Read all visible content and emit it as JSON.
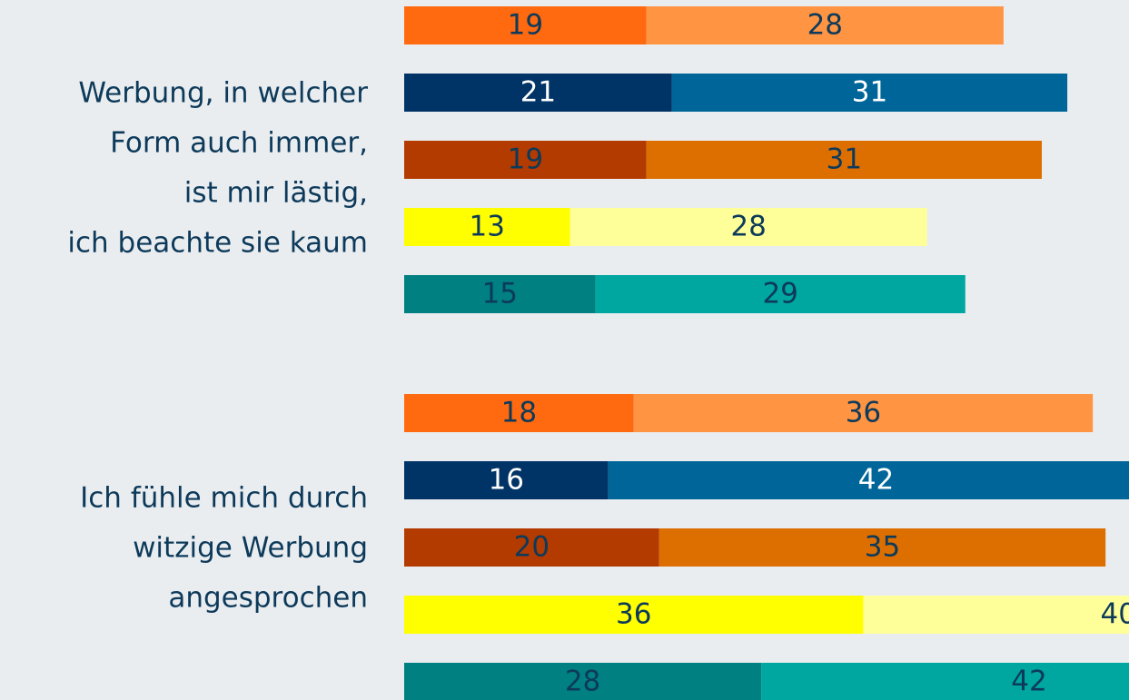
{
  "chart_data": {
    "type": "bar",
    "orientation": "horizontal",
    "stacked": true,
    "categories": [
      [
        "Werbung, in welcher",
        "Form auch immer,",
        "ist mir lästig,",
        "ich beachte sie kaum"
      ],
      [
        "Ich fühle mich durch",
        "witzige Werbung",
        "angesprochen"
      ]
    ],
    "bars": [
      {
        "series": [
          {
            "color": "#ff690f",
            "label_color": "#0d3a5a",
            "values": [
              19,
              18
            ]
          },
          {
            "color": "#ff9442",
            "label_color": "#0d3a5a",
            "values": [
              28,
              36
            ]
          }
        ]
      },
      {
        "series": [
          {
            "color": "#003366",
            "label_color": "#ffffff",
            "values": [
              21,
              16
            ]
          },
          {
            "color": "#006699",
            "label_color": "#ffffff",
            "values": [
              31,
              42
            ]
          }
        ]
      },
      {
        "series": [
          {
            "color": "#b33b00",
            "label_color": "#0d3a5a",
            "values": [
              19,
              20
            ]
          },
          {
            "color": "#dd6f00",
            "label_color": "#0d3a5a",
            "values": [
              31,
              35
            ]
          }
        ]
      },
      {
        "series": [
          {
            "color": "#ffff00",
            "label_color": "#0d3a5a",
            "values": [
              13,
              36
            ]
          },
          {
            "color": "#ffff99",
            "label_color": "#0d3a5a",
            "values": [
              28,
              40
            ]
          }
        ]
      },
      {
        "series": [
          {
            "color": "#008080",
            "label_color": "#0d3a5a",
            "values": [
              15,
              28
            ]
          },
          {
            "color": "#00a6a0",
            "label_color": "#0d3a5a",
            "values": [
              29,
              42
            ]
          }
        ]
      }
    ]
  }
}
